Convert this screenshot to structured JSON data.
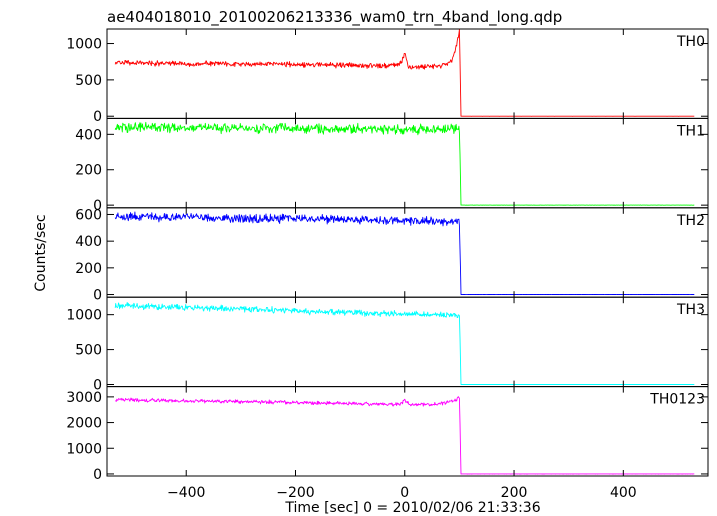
{
  "title": "ae404018010_20100206213336_wam0_trn_4band_long.qdp",
  "chart_data": {
    "type": "line",
    "title": "ae404018010_20100206213336_wam0_trn_4band_long.qdp",
    "xlabel": "Time [sec] 0 = 2010/02/06 21:33:36",
    "ylabel": "Counts/sec",
    "xlim": [
      -545,
      555
    ],
    "x_ticks": [
      -400,
      -200,
      0,
      200,
      400
    ],
    "x_tick_labels": [
      "−400",
      "−200",
      "0",
      "200",
      "400"
    ],
    "shared_x": true,
    "stacked_panels": true,
    "series": [
      {
        "name": "TH0",
        "color": "#ff0000",
        "ylim": [
          -30,
          1200
        ],
        "y_ticks": [
          0,
          500,
          1000
        ],
        "x": [
          -530,
          -500,
          -450,
          -400,
          -350,
          -300,
          -250,
          -200,
          -150,
          -100,
          -50,
          -10,
          -5,
          0,
          5,
          10,
          40,
          70,
          85,
          90,
          95,
          98,
          100,
          103,
          120,
          200,
          300,
          400,
          530
        ],
        "y": [
          740,
          735,
          730,
          720,
          725,
          715,
          720,
          710,
          705,
          700,
          695,
          700,
          760,
          890,
          710,
          680,
          680,
          700,
          760,
          850,
          980,
          1100,
          1180,
          0,
          0,
          0,
          0,
          0,
          0
        ]
      },
      {
        "name": "TH1",
        "color": "#00ff00",
        "ylim": [
          -15,
          490
        ],
        "y_ticks": [
          0,
          200,
          400
        ],
        "x": [
          -530,
          -450,
          -350,
          -250,
          -150,
          -50,
          0,
          50,
          100,
          103,
          200,
          300,
          400,
          530
        ],
        "y": [
          440,
          438,
          436,
          434,
          432,
          430,
          428,
          428,
          430,
          0,
          0,
          0,
          0,
          0
        ]
      },
      {
        "name": "TH2",
        "color": "#0000ff",
        "ylim": [
          -20,
          650
        ],
        "y_ticks": [
          0,
          200,
          400,
          600
        ],
        "x": [
          -530,
          -450,
          -350,
          -250,
          -150,
          -50,
          0,
          50,
          100,
          103,
          200,
          300,
          400,
          530
        ],
        "y": [
          585,
          580,
          575,
          570,
          565,
          560,
          555,
          550,
          548,
          0,
          0,
          0,
          0,
          0
        ]
      },
      {
        "name": "TH3",
        "color": "#00ffff",
        "ylim": [
          -30,
          1250
        ],
        "y_ticks": [
          0,
          500,
          1000
        ],
        "x": [
          -530,
          -450,
          -350,
          -250,
          -150,
          -50,
          0,
          50,
          100,
          103,
          200,
          300,
          400,
          530
        ],
        "y": [
          1130,
          1110,
          1090,
          1070,
          1040,
          1020,
          1010,
          1000,
          995,
          0,
          0,
          0,
          0,
          0
        ]
      },
      {
        "name": "TH0123",
        "color": "#ff00ff",
        "ylim": [
          -80,
          3400
        ],
        "y_ticks": [
          0,
          1000,
          2000,
          3000
        ],
        "x": [
          -530,
          -450,
          -350,
          -250,
          -150,
          -50,
          -10,
          0,
          10,
          50,
          80,
          95,
          100,
          103,
          200,
          300,
          400,
          530
        ],
        "y": [
          2880,
          2860,
          2830,
          2800,
          2760,
          2720,
          2720,
          2860,
          2700,
          2700,
          2780,
          2900,
          2990,
          0,
          0,
          0,
          0,
          0
        ]
      }
    ]
  }
}
